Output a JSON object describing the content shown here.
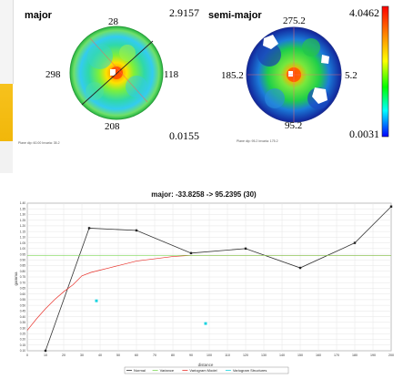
{
  "panels": {
    "major": {
      "label": "major",
      "max_value": "2.9157",
      "min_value": "0.0155",
      "azimuth_top": "28",
      "azimuth_right": "118",
      "azimuth_bottom": "208",
      "azimuth_left": "298",
      "footnote": "Plane dip: 60.00 Invaria: 35.2"
    },
    "semi_major": {
      "label": "semi-major",
      "max_value": "4.0462",
      "min_value": "0.0031",
      "azimuth_top": "275.2",
      "azimuth_right": "5.2",
      "azimuth_bottom": "95.2",
      "azimuth_left": "185.2",
      "footnote": "Plane dip: 95.2 Invaria: 175.2"
    }
  },
  "colorbar": {
    "colors": [
      "#ff0000",
      "#ff8800",
      "#ffff00",
      "#00ff00",
      "#00ffff",
      "#0000ff"
    ]
  },
  "chart_data": {
    "type": "line",
    "title": "major: -33.8258 -> 95.2395 (30)",
    "xlabel": "distance",
    "ylabel": "gamma",
    "xlim": [
      0,
      200
    ],
    "ylim": [
      0.1,
      1.4
    ],
    "x_ticks": [
      "0",
      "10",
      "20",
      "30",
      "40",
      "50",
      "60",
      "70",
      "80",
      "90",
      "100",
      "110",
      "120",
      "130",
      "140",
      "150",
      "160",
      "170",
      "180",
      "190",
      "200"
    ],
    "y_ticks": [
      "0.10",
      "0.15",
      "0.20",
      "0.25",
      "0.30",
      "0.35",
      "0.40",
      "0.45",
      "0.50",
      "0.55",
      "0.60",
      "0.65",
      "0.70",
      "0.75",
      "0.80",
      "0.85",
      "0.90",
      "0.95",
      "1.00",
      "1.05",
      "1.10",
      "1.15",
      "1.20",
      "1.25",
      "1.30",
      "1.35",
      "1.40"
    ],
    "series": [
      {
        "name": "Variogram",
        "color": "#333333",
        "x": [
          10,
          34,
          60,
          90,
          120,
          150,
          180,
          200
        ],
        "y": [
          0.1,
          1.18,
          1.16,
          0.96,
          1.0,
          0.83,
          1.05,
          1.37
        ]
      },
      {
        "name": "Variogram Model",
        "color": "#e8322b",
        "x": [
          0,
          5,
          10,
          15,
          20,
          25,
          30,
          35,
          40,
          45,
          50,
          60,
          70,
          80,
          90,
          100,
          120,
          140,
          160,
          180,
          200
        ],
        "y": [
          0.28,
          0.38,
          0.47,
          0.55,
          0.62,
          0.68,
          0.76,
          0.79,
          0.81,
          0.83,
          0.85,
          0.89,
          0.91,
          0.93,
          0.94,
          0.94,
          0.94,
          0.94,
          0.94,
          0.94,
          0.94
        ]
      },
      {
        "name": "Variance",
        "color": "#7ed957",
        "x": [
          0,
          200
        ],
        "y": [
          0.94,
          0.94
        ]
      },
      {
        "name": "Variogram Structures",
        "color": "#19d3e0",
        "x": [
          38,
          98
        ],
        "y": [
          0.54,
          0.34
        ]
      }
    ],
    "legend": [
      "Normal",
      "Variance",
      "Variogram Model",
      "Variogram Structures"
    ],
    "legend_placement": "bottom"
  }
}
